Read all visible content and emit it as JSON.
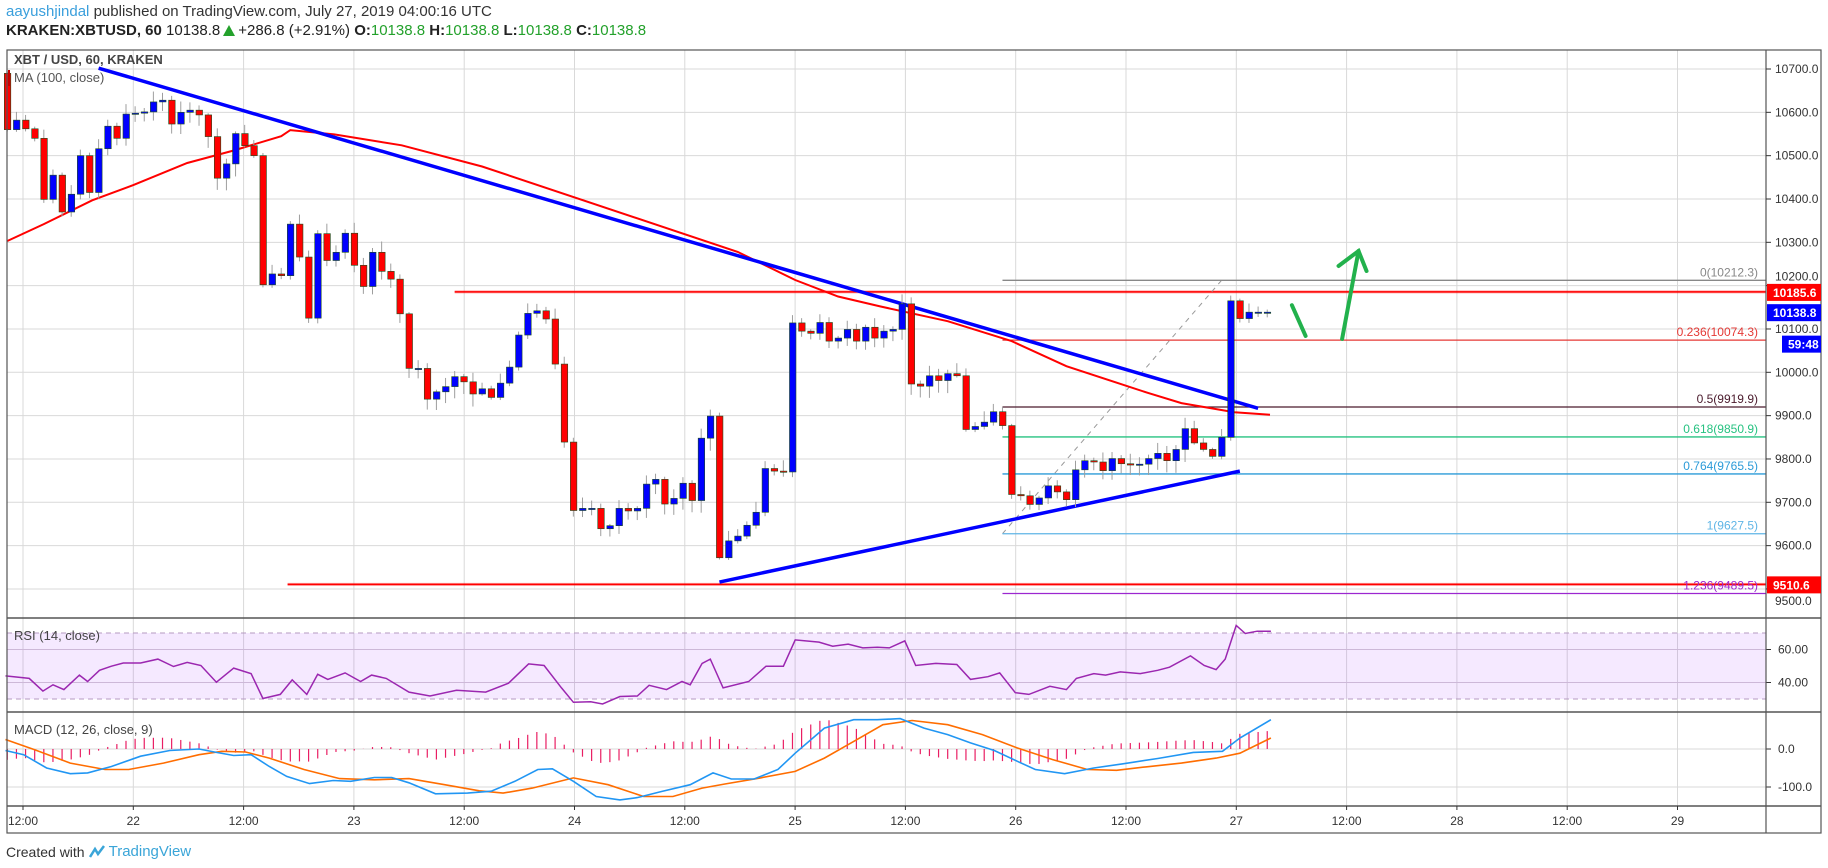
{
  "header": {
    "author": "aayushjindal",
    "published": "published on TradingView.com, July 27, 2019 04:00:16 UTC",
    "symbol": "KRAKEN:XBTUSD, 60",
    "last": "10138.8",
    "change": "+286.8 (+2.91%)",
    "o_label": "O:",
    "o": "10138.8",
    "h_label": "H:",
    "h": "10138.8",
    "l_label": "L:",
    "l": "10138.8",
    "c_label": "C:",
    "c": "10138.8"
  },
  "footer": {
    "created_with": "Created with",
    "brand": "TradingView"
  },
  "chart_data": {
    "type": "candlestick",
    "title": "XBT / USD, 60, KRAKEN",
    "ma_label": "MA (100, close)",
    "interval_minutes": 60,
    "first_open": 10690,
    "closes": [
      10560,
      10582,
      10562,
      10540,
      10399,
      10455,
      10370,
      10411,
      10500,
      10415,
      10516,
      10568,
      10540,
      10596,
      10598,
      10601,
      10624,
      10628,
      10573,
      10600,
      10605,
      10594,
      10544,
      10448,
      10481,
      10551,
      10523,
      10500,
      10202,
      10227,
      10223,
      10342,
      10266,
      10125,
      10320,
      10258,
      10277,
      10321,
      10247,
      10198,
      10277,
      10233,
      10215,
      10135,
      10009,
      10009,
      9938,
      9955,
      9967,
      9990,
      9978,
      9950,
      9962,
      9942,
      9975,
      10012,
      10086,
      10136,
      10142,
      10123,
      10019,
      9839,
      9681,
      9686,
      9686,
      9639,
      9646,
      9686,
      9680,
      9686,
      9742,
      9753,
      9696,
      9709,
      9744,
      9704,
      9848,
      9899,
      9572,
      9611,
      9622,
      9647,
      9677,
      9778,
      9772,
      9770,
      10114,
      10095,
      10090,
      10115,
      10072,
      10079,
      10099,
      10072,
      10104,
      10079,
      10095,
      10099,
      10158,
      9973,
      9968,
      9992,
      9981,
      9997,
      9992,
      9868,
      9875,
      9885,
      9909,
      9877,
      9718,
      9715,
      9695,
      9710,
      9738,
      9724,
      9706,
      9775,
      9796,
      9793,
      9773,
      9801,
      9789,
      9786,
      9788,
      9801,
      9813,
      9796,
      9822,
      9870,
      9837,
      9822,
      9806,
      9850,
      10165,
      10124,
      10138.8,
      10138.8,
      10138.8
    ],
    "ma100": [
      [
        0,
        10303
      ],
      [
        4,
        10342
      ],
      [
        9.3,
        10397
      ],
      [
        13.8,
        10432
      ],
      [
        19.7,
        10483
      ],
      [
        24.8,
        10512
      ],
      [
        30,
        10545
      ],
      [
        31,
        10559
      ],
      [
        35.8,
        10549
      ],
      [
        43.2,
        10524
      ],
      [
        52,
        10475
      ],
      [
        80,
        10278
      ],
      [
        86.3,
        10213
      ],
      [
        91,
        10175
      ],
      [
        95.6,
        10152
      ],
      [
        103,
        10118
      ],
      [
        110,
        10072
      ],
      [
        116,
        10014
      ],
      [
        125,
        9952
      ],
      [
        128.6,
        9929
      ],
      [
        134.4,
        9908
      ],
      [
        138.3,
        9902
      ]
    ],
    "price_axis": {
      "ticks": [
        "10700.0",
        "10600.0",
        "10500.0",
        "10400.0",
        "10300.0",
        "10200.0",
        "10100.0",
        "10000.0",
        "9900.0",
        "9800.0",
        "9700.0",
        "9600.0",
        "9500.0"
      ],
      "range": [
        9433,
        10744
      ]
    },
    "time_axis": {
      "labels": [
        "12:00",
        "22",
        "12:00",
        "23",
        "12:00",
        "24",
        "12:00",
        "25",
        "12:00",
        "26",
        "12:00",
        "27",
        "12:00",
        "28",
        "12:00",
        "29"
      ]
    },
    "trendlines": [
      {
        "name": "descending-trendline",
        "from": [
          10,
          10702
        ],
        "to": [
          137,
          9917
        ],
        "color": "#0000ff"
      },
      {
        "name": "ascending-trendline",
        "from": [
          78,
          9516
        ],
        "to": [
          135,
          9772
        ],
        "color": "#0000ff"
      }
    ],
    "horizontal_levels": [
      {
        "name": "resistance",
        "value": 10185.6,
        "start_index": 49,
        "color": "#ff0000"
      },
      {
        "name": "support",
        "value": 9510.6,
        "start_index": 30.7,
        "color": "#ff0000"
      }
    ],
    "fibonacci": {
      "start_index": 109,
      "diagonal": [
        [
          109,
          9627.5
        ],
        [
          133,
          10212.3
        ]
      ],
      "levels": [
        {
          "label": "0(10212.3)",
          "value": 10212.3,
          "color": "#888888"
        },
        {
          "label": "0.236(10074.3)",
          "value": 10074.3,
          "color": "#e53935"
        },
        {
          "label": "0.5(9919.9)",
          "value": 9919.9,
          "color": "#4a1a2c"
        },
        {
          "label": "0.618(9850.9)",
          "value": 9850.9,
          "color": "#26c281"
        },
        {
          "label": "0.764(9765.5)",
          "value": 9765.5,
          "color": "#2b9bd8"
        },
        {
          "label": "1(9627.5)",
          "value": 9627.5,
          "color": "#5fb5e6"
        },
        {
          "label": "1.236(9489.5)",
          "value": 9489.5,
          "color": "#9c27d0"
        }
      ]
    },
    "arrows": {
      "color": "#22b14c",
      "zigzag": [
        [
          140.7,
          10155
        ],
        [
          142.2,
          10084
        ]
      ],
      "up_arrow": [
        [
          146.2,
          10077
        ],
        [
          148,
          10280
        ]
      ]
    },
    "price_tags": [
      {
        "text": "10185.6",
        "value": 10185.6,
        "color": "#ff0000"
      },
      {
        "text": "10138.8",
        "value": 10138.8,
        "color": "#0000ff"
      },
      {
        "text": "59:48",
        "value": 10080,
        "color": "#0000ff"
      },
      {
        "text": "9510.6",
        "value": 9510.6,
        "color": "#ff0000"
      }
    ],
    "colors": {
      "up": "#0000ff",
      "down": "#ff0000",
      "ma": "#ff0000"
    },
    "rsi": {
      "label": "RSI (14, close)",
      "ticks": [
        "60.00",
        "40.00"
      ],
      "bands": [
        30,
        70
      ],
      "color": "#9b27b0",
      "points": [
        [
          -0.2,
          44
        ],
        [
          2.4,
          42.5
        ],
        [
          3.9,
          34.8
        ],
        [
          5,
          38.6
        ],
        [
          6.2,
          35.7
        ],
        [
          7.9,
          44.5
        ],
        [
          8.8,
          40.6
        ],
        [
          10.1,
          47.4
        ],
        [
          11.4,
          49.9
        ],
        [
          12.7,
          51.8
        ],
        [
          14.6,
          51.8
        ],
        [
          16.5,
          54.2
        ],
        [
          18.2,
          49.7
        ],
        [
          19.7,
          52.2
        ],
        [
          21.2,
          50.3
        ],
        [
          22.9,
          40.2
        ],
        [
          24.8,
          48.7
        ],
        [
          26.7,
          45.4
        ],
        [
          28,
          30.3
        ],
        [
          29.9,
          32.8
        ],
        [
          31.2,
          41.6
        ],
        [
          32.8,
          32.8
        ],
        [
          34,
          45
        ],
        [
          35.1,
          41.9
        ],
        [
          37,
          45.8
        ],
        [
          38.7,
          40.6
        ],
        [
          39.9,
          44.5
        ],
        [
          41.5,
          42.5
        ],
        [
          44,
          34.2
        ],
        [
          46.3,
          31.8
        ],
        [
          49.2,
          35.3
        ],
        [
          52.4,
          34.2
        ],
        [
          54.9,
          39.6
        ],
        [
          57.1,
          51.3
        ],
        [
          58.8,
          50.3
        ],
        [
          60.7,
          36.7
        ],
        [
          62,
          28
        ],
        [
          63.9,
          28.3
        ],
        [
          65.2,
          27
        ],
        [
          67.1,
          31.5
        ],
        [
          69,
          31.8
        ],
        [
          70.3,
          38.3
        ],
        [
          72.2,
          35.7
        ],
        [
          73.9,
          40.6
        ],
        [
          74.8,
          38.6
        ],
        [
          76.1,
          51.6
        ],
        [
          77,
          54.2
        ],
        [
          78.4,
          36.7
        ],
        [
          81.2,
          40.6
        ],
        [
          83.1,
          49.9
        ],
        [
          85,
          49.9
        ],
        [
          86.3,
          65.8
        ],
        [
          88.9,
          64.5
        ],
        [
          90.4,
          62
        ],
        [
          92.1,
          63.3
        ],
        [
          93.7,
          61
        ],
        [
          95.3,
          61.4
        ],
        [
          96.6,
          61
        ],
        [
          98.3,
          65.2
        ],
        [
          99.5,
          50.3
        ],
        [
          101.7,
          51.6
        ],
        [
          104,
          50.9
        ],
        [
          105.5,
          41.9
        ],
        [
          107.4,
          43.5
        ],
        [
          108.7,
          45.8
        ],
        [
          110.4,
          33.8
        ],
        [
          111.9,
          32.8
        ],
        [
          114.2,
          37.7
        ],
        [
          116,
          35.7
        ],
        [
          117.1,
          42.5
        ],
        [
          119,
          45.4
        ],
        [
          120.3,
          44.5
        ],
        [
          121.9,
          46.4
        ],
        [
          124.1,
          45.4
        ],
        [
          126,
          47.4
        ],
        [
          127.3,
          49.3
        ],
        [
          129.6,
          56.1
        ],
        [
          131.1,
          50.3
        ],
        [
          132.4,
          47.8
        ],
        [
          133.4,
          54.2
        ],
        [
          134.6,
          74.6
        ],
        [
          135.6,
          69.7
        ],
        [
          136.9,
          71.1
        ],
        [
          138.4,
          71.1
        ]
      ]
    },
    "macd": {
      "label": "MACD (12, 26, close, 9)",
      "ticks": [
        {
          "text": "0.0",
          "value": 0
        },
        {
          "text": "-100.0",
          "value": -100
        }
      ],
      "macd_color": "#2196f3",
      "signal_color": "#ff6d00",
      "hist_color": "#e91e63",
      "macd_line": [
        [
          -0.2,
          -4
        ],
        [
          1.8,
          -15
        ],
        [
          4.3,
          -50
        ],
        [
          6.9,
          -65
        ],
        [
          8.8,
          -63
        ],
        [
          11.4,
          -46
        ],
        [
          14.6,
          -19
        ],
        [
          17.8,
          -4
        ],
        [
          21,
          0
        ],
        [
          22.9,
          -9
        ],
        [
          24.8,
          -17
        ],
        [
          26.7,
          -15
        ],
        [
          28.7,
          -46
        ],
        [
          30.6,
          -72
        ],
        [
          33.1,
          -91
        ],
        [
          35.7,
          -83
        ],
        [
          37.6,
          -85
        ],
        [
          40.2,
          -75
        ],
        [
          42.1,
          -75
        ],
        [
          44,
          -89
        ],
        [
          46.9,
          -118
        ],
        [
          50.4,
          -116
        ],
        [
          53,
          -111
        ],
        [
          55.6,
          -85
        ],
        [
          58.1,
          -54
        ],
        [
          59.7,
          -52
        ],
        [
          62,
          -85
        ],
        [
          64.5,
          -125
        ],
        [
          67.1,
          -134
        ],
        [
          69,
          -128
        ],
        [
          71.6,
          -112
        ],
        [
          74.8,
          -94
        ],
        [
          77.3,
          -63
        ],
        [
          79.3,
          -79
        ],
        [
          81.8,
          -79
        ],
        [
          84.4,
          -54
        ],
        [
          86.3,
          -11
        ],
        [
          89.5,
          55
        ],
        [
          92.7,
          77
        ],
        [
          95.3,
          77
        ],
        [
          97.8,
          80
        ],
        [
          100.4,
          55
        ],
        [
          103,
          38
        ],
        [
          105.5,
          16
        ],
        [
          108.1,
          -4
        ],
        [
          110.6,
          -32
        ],
        [
          112.6,
          -54
        ],
        [
          115.8,
          -65
        ],
        [
          119,
          -50
        ],
        [
          122.2,
          -39
        ],
        [
          126,
          -25
        ],
        [
          129.9,
          -9
        ],
        [
          133.1,
          -6
        ],
        [
          135,
          29
        ],
        [
          138.4,
          77
        ]
      ],
      "signal_line": [
        [
          -0.2,
          25
        ],
        [
          3,
          -2
        ],
        [
          6.9,
          -37
        ],
        [
          10.7,
          -54
        ],
        [
          13.3,
          -54
        ],
        [
          17.1,
          -37
        ],
        [
          21,
          -15
        ],
        [
          23.5,
          -6
        ],
        [
          26.1,
          -8
        ],
        [
          28.7,
          -24
        ],
        [
          32.5,
          -54
        ],
        [
          36.4,
          -78
        ],
        [
          40.2,
          -81
        ],
        [
          44,
          -78
        ],
        [
          47.9,
          -94
        ],
        [
          51.7,
          -110
        ],
        [
          54.3,
          -116
        ],
        [
          57.5,
          -103
        ],
        [
          62,
          -76
        ],
        [
          65.8,
          -94
        ],
        [
          69.7,
          -125
        ],
        [
          72.9,
          -125
        ],
        [
          76.1,
          -103
        ],
        [
          78.6,
          -92
        ],
        [
          82.5,
          -76
        ],
        [
          86.3,
          -59
        ],
        [
          89.5,
          -24
        ],
        [
          92.7,
          20
        ],
        [
          95.9,
          64
        ],
        [
          99.1,
          75
        ],
        [
          103,
          64
        ],
        [
          106.8,
          38
        ],
        [
          110.6,
          3
        ],
        [
          114.5,
          -28
        ],
        [
          118.3,
          -54
        ],
        [
          121.5,
          -56
        ],
        [
          124.7,
          -47
        ],
        [
          128.6,
          -37
        ],
        [
          132.4,
          -24
        ],
        [
          135,
          -11
        ],
        [
          138.4,
          29
        ]
      ]
    }
  }
}
